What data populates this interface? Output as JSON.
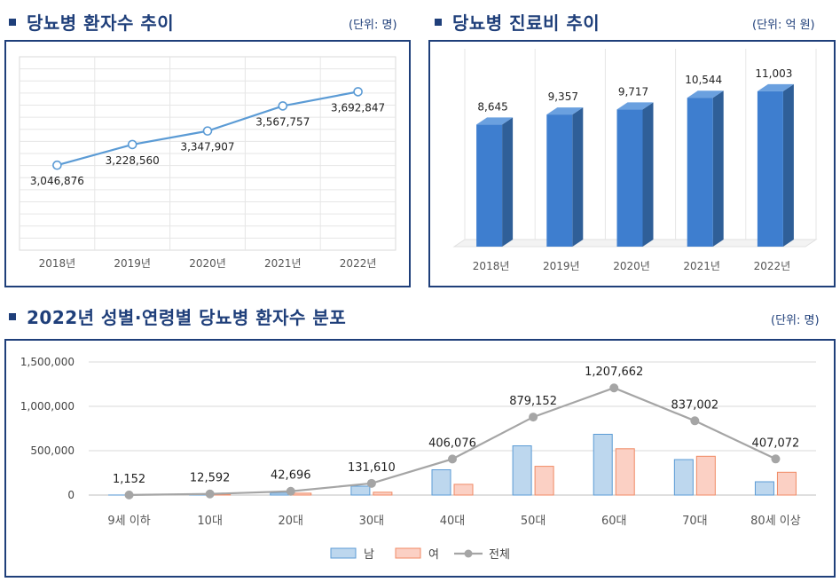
{
  "sections": {
    "line": {
      "title": "당뇨병 환자수 추이",
      "unit": "(단위: 명)"
    },
    "bar": {
      "title": "당뇨병 진료비 추이",
      "unit": "(단위: 억 원)"
    },
    "combo": {
      "title": "2022년 성별·연령별 당뇨병 환자수 분포",
      "unit": "(단위: 명)"
    }
  },
  "chart_data": [
    {
      "type": "line",
      "title": "당뇨병 환자수 추이",
      "categories": [
        "2018년",
        "2019년",
        "2020년",
        "2021년",
        "2022년"
      ],
      "values": [
        3046876,
        3228560,
        3347907,
        3567757,
        3692847
      ],
      "labels": [
        "3,046,876",
        "3,228,560",
        "3,347,907",
        "3,567,757",
        "3,692,847"
      ],
      "ylim": [
        0,
        4000000
      ],
      "color": "#5b9bd5"
    },
    {
      "type": "bar",
      "title": "당뇨병 진료비 추이",
      "categories": [
        "2018년",
        "2019년",
        "2020년",
        "2021년",
        "2022년"
      ],
      "values": [
        8645,
        9357,
        9717,
        10544,
        11003
      ],
      "labels": [
        "8,645",
        "9,357",
        "9,717",
        "10,544",
        "11,003"
      ],
      "ylim": [
        0,
        11500
      ],
      "color": "#3e7ecf"
    },
    {
      "type": "bar",
      "title": "2022년 성별·연령별 당뇨병 환자수 분포",
      "categories": [
        "9세 이하",
        "10대",
        "20대",
        "30대",
        "40대",
        "50대",
        "60대",
        "70대",
        "80세 이상"
      ],
      "yticks": [
        "1,500,000",
        "1,000,000",
        "500,000",
        "0"
      ],
      "ylim": [
        0,
        1500000
      ],
      "series": [
        {
          "name": "남",
          "type": "bar",
          "color": "#bdd7ee",
          "stroke": "#5b9bd5",
          "values": [
            600,
            6300,
            22000,
            100000,
            285000,
            555000,
            685000,
            400000,
            150000
          ]
        },
        {
          "name": "여",
          "type": "bar",
          "color": "#fbd0c4",
          "stroke": "#f08a64",
          "values": [
            550,
            6300,
            21000,
            32000,
            121000,
            324000,
            522000,
            437000,
            257000
          ]
        },
        {
          "name": "전체",
          "type": "line",
          "color": "#a5a5a5",
          "values": [
            1152,
            12592,
            42696,
            131610,
            406076,
            879152,
            1207662,
            837002,
            407072
          ],
          "labels": [
            "1,152",
            "12,592",
            "42,696",
            "131,610",
            "406,076",
            "879,152",
            "1,207,662",
            "837,002",
            "407,072"
          ]
        }
      ]
    }
  ]
}
